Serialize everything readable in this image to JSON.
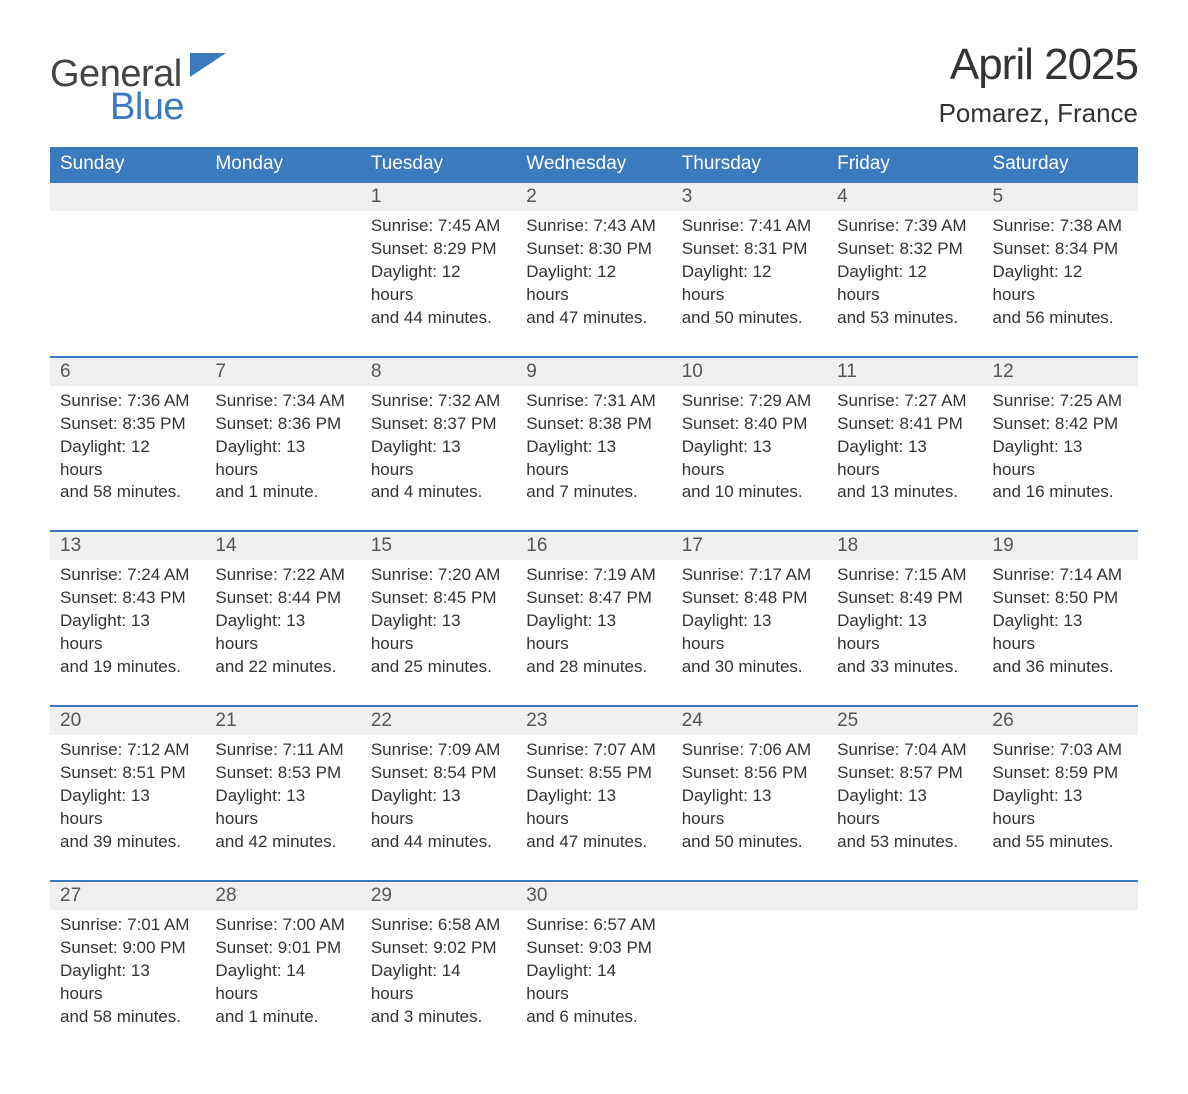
{
  "logo": {
    "general": "General",
    "blue": "Blue"
  },
  "title": "April 2025",
  "location": "Pomarez, France",
  "colors": {
    "header_bg": "#3b7abf",
    "header_text": "#ffffff",
    "daterow_bg": "#f0f0f0",
    "daterow_border": "#3b7abf",
    "body_text": "#333333",
    "logo_gray": "#444444",
    "logo_blue": "#3b7abf"
  },
  "daynames": [
    "Sunday",
    "Monday",
    "Tuesday",
    "Wednesday",
    "Thursday",
    "Friday",
    "Saturday"
  ],
  "weeks": [
    {
      "dates": [
        "",
        "",
        "1",
        "2",
        "3",
        "4",
        "5"
      ],
      "cells": [
        null,
        null,
        {
          "sunrise": "Sunrise: 7:45 AM",
          "sunset": "Sunset: 8:29 PM",
          "day1": "Daylight: 12 hours",
          "day2": "and 44 minutes."
        },
        {
          "sunrise": "Sunrise: 7:43 AM",
          "sunset": "Sunset: 8:30 PM",
          "day1": "Daylight: 12 hours",
          "day2": "and 47 minutes."
        },
        {
          "sunrise": "Sunrise: 7:41 AM",
          "sunset": "Sunset: 8:31 PM",
          "day1": "Daylight: 12 hours",
          "day2": "and 50 minutes."
        },
        {
          "sunrise": "Sunrise: 7:39 AM",
          "sunset": "Sunset: 8:32 PM",
          "day1": "Daylight: 12 hours",
          "day2": "and 53 minutes."
        },
        {
          "sunrise": "Sunrise: 7:38 AM",
          "sunset": "Sunset: 8:34 PM",
          "day1": "Daylight: 12 hours",
          "day2": "and 56 minutes."
        }
      ]
    },
    {
      "dates": [
        "6",
        "7",
        "8",
        "9",
        "10",
        "11",
        "12"
      ],
      "cells": [
        {
          "sunrise": "Sunrise: 7:36 AM",
          "sunset": "Sunset: 8:35 PM",
          "day1": "Daylight: 12 hours",
          "day2": "and 58 minutes."
        },
        {
          "sunrise": "Sunrise: 7:34 AM",
          "sunset": "Sunset: 8:36 PM",
          "day1": "Daylight: 13 hours",
          "day2": "and 1 minute."
        },
        {
          "sunrise": "Sunrise: 7:32 AM",
          "sunset": "Sunset: 8:37 PM",
          "day1": "Daylight: 13 hours",
          "day2": "and 4 minutes."
        },
        {
          "sunrise": "Sunrise: 7:31 AM",
          "sunset": "Sunset: 8:38 PM",
          "day1": "Daylight: 13 hours",
          "day2": "and 7 minutes."
        },
        {
          "sunrise": "Sunrise: 7:29 AM",
          "sunset": "Sunset: 8:40 PM",
          "day1": "Daylight: 13 hours",
          "day2": "and 10 minutes."
        },
        {
          "sunrise": "Sunrise: 7:27 AM",
          "sunset": "Sunset: 8:41 PM",
          "day1": "Daylight: 13 hours",
          "day2": "and 13 minutes."
        },
        {
          "sunrise": "Sunrise: 7:25 AM",
          "sunset": "Sunset: 8:42 PM",
          "day1": "Daylight: 13 hours",
          "day2": "and 16 minutes."
        }
      ]
    },
    {
      "dates": [
        "13",
        "14",
        "15",
        "16",
        "17",
        "18",
        "19"
      ],
      "cells": [
        {
          "sunrise": "Sunrise: 7:24 AM",
          "sunset": "Sunset: 8:43 PM",
          "day1": "Daylight: 13 hours",
          "day2": "and 19 minutes."
        },
        {
          "sunrise": "Sunrise: 7:22 AM",
          "sunset": "Sunset: 8:44 PM",
          "day1": "Daylight: 13 hours",
          "day2": "and 22 minutes."
        },
        {
          "sunrise": "Sunrise: 7:20 AM",
          "sunset": "Sunset: 8:45 PM",
          "day1": "Daylight: 13 hours",
          "day2": "and 25 minutes."
        },
        {
          "sunrise": "Sunrise: 7:19 AM",
          "sunset": "Sunset: 8:47 PM",
          "day1": "Daylight: 13 hours",
          "day2": "and 28 minutes."
        },
        {
          "sunrise": "Sunrise: 7:17 AM",
          "sunset": "Sunset: 8:48 PM",
          "day1": "Daylight: 13 hours",
          "day2": "and 30 minutes."
        },
        {
          "sunrise": "Sunrise: 7:15 AM",
          "sunset": "Sunset: 8:49 PM",
          "day1": "Daylight: 13 hours",
          "day2": "and 33 minutes."
        },
        {
          "sunrise": "Sunrise: 7:14 AM",
          "sunset": "Sunset: 8:50 PM",
          "day1": "Daylight: 13 hours",
          "day2": "and 36 minutes."
        }
      ]
    },
    {
      "dates": [
        "20",
        "21",
        "22",
        "23",
        "24",
        "25",
        "26"
      ],
      "cells": [
        {
          "sunrise": "Sunrise: 7:12 AM",
          "sunset": "Sunset: 8:51 PM",
          "day1": "Daylight: 13 hours",
          "day2": "and 39 minutes."
        },
        {
          "sunrise": "Sunrise: 7:11 AM",
          "sunset": "Sunset: 8:53 PM",
          "day1": "Daylight: 13 hours",
          "day2": "and 42 minutes."
        },
        {
          "sunrise": "Sunrise: 7:09 AM",
          "sunset": "Sunset: 8:54 PM",
          "day1": "Daylight: 13 hours",
          "day2": "and 44 minutes."
        },
        {
          "sunrise": "Sunrise: 7:07 AM",
          "sunset": "Sunset: 8:55 PM",
          "day1": "Daylight: 13 hours",
          "day2": "and 47 minutes."
        },
        {
          "sunrise": "Sunrise: 7:06 AM",
          "sunset": "Sunset: 8:56 PM",
          "day1": "Daylight: 13 hours",
          "day2": "and 50 minutes."
        },
        {
          "sunrise": "Sunrise: 7:04 AM",
          "sunset": "Sunset: 8:57 PM",
          "day1": "Daylight: 13 hours",
          "day2": "and 53 minutes."
        },
        {
          "sunrise": "Sunrise: 7:03 AM",
          "sunset": "Sunset: 8:59 PM",
          "day1": "Daylight: 13 hours",
          "day2": "and 55 minutes."
        }
      ]
    },
    {
      "dates": [
        "27",
        "28",
        "29",
        "30",
        "",
        "",
        ""
      ],
      "cells": [
        {
          "sunrise": "Sunrise: 7:01 AM",
          "sunset": "Sunset: 9:00 PM",
          "day1": "Daylight: 13 hours",
          "day2": "and 58 minutes."
        },
        {
          "sunrise": "Sunrise: 7:00 AM",
          "sunset": "Sunset: 9:01 PM",
          "day1": "Daylight: 14 hours",
          "day2": "and 1 minute."
        },
        {
          "sunrise": "Sunrise: 6:58 AM",
          "sunset": "Sunset: 9:02 PM",
          "day1": "Daylight: 14 hours",
          "day2": "and 3 minutes."
        },
        {
          "sunrise": "Sunrise: 6:57 AM",
          "sunset": "Sunset: 9:03 PM",
          "day1": "Daylight: 14 hours",
          "day2": "and 6 minutes."
        },
        null,
        null,
        null
      ]
    }
  ]
}
